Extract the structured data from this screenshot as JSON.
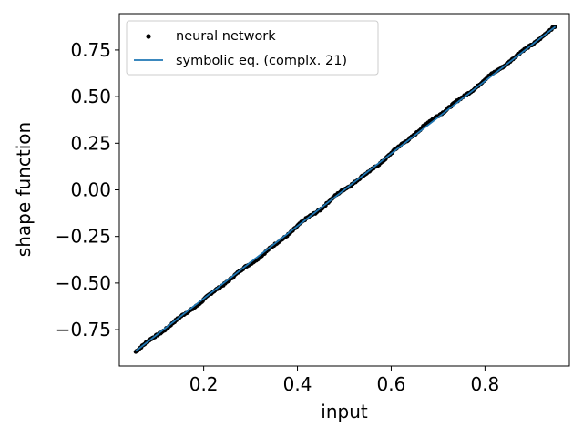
{
  "chart_data": {
    "type": "scatter",
    "title": "",
    "xlabel": "input",
    "ylabel": "shape function",
    "xlim": [
      0.02,
      0.98
    ],
    "ylim": [
      -0.945,
      0.945
    ],
    "xticks": [
      0.2,
      0.4,
      0.6,
      0.8
    ],
    "xtick_labels": [
      "0.2",
      "0.4",
      "0.6",
      "0.8"
    ],
    "yticks": [
      -0.75,
      -0.5,
      -0.25,
      0.0,
      0.25,
      0.5,
      0.75
    ],
    "ytick_labels": [
      "−0.75",
      "−0.50",
      "−0.25",
      "0.00",
      "0.25",
      "0.50",
      "0.75"
    ],
    "grid": false,
    "legend_position": "top-left",
    "series": [
      {
        "name": "neural network",
        "kind": "scatter",
        "color": "#000000",
        "x_range": [
          0.055,
          0.95
        ],
        "y_range": [
          -0.865,
          0.875
        ],
        "points": [
          [
            0.055,
            -0.865
          ],
          [
            0.1,
            -0.78
          ],
          [
            0.15,
            -0.685
          ],
          [
            0.2,
            -0.59
          ],
          [
            0.25,
            -0.49
          ],
          [
            0.3,
            -0.395
          ],
          [
            0.35,
            -0.3
          ],
          [
            0.4,
            -0.195
          ],
          [
            0.43,
            -0.135
          ],
          [
            0.45,
            -0.1
          ],
          [
            0.5,
            0.005
          ],
          [
            0.55,
            0.09
          ],
          [
            0.6,
            0.195
          ],
          [
            0.65,
            0.3
          ],
          [
            0.7,
            0.4
          ],
          [
            0.75,
            0.49
          ],
          [
            0.8,
            0.59
          ],
          [
            0.85,
            0.685
          ],
          [
            0.9,
            0.78
          ],
          [
            0.95,
            0.875
          ]
        ]
      },
      {
        "name": "symbolic eq. (complx. 21)",
        "kind": "line",
        "color": "#1f77b4",
        "x": [
          0.055,
          0.95
        ],
        "y": [
          -0.865,
          0.875
        ]
      }
    ]
  }
}
